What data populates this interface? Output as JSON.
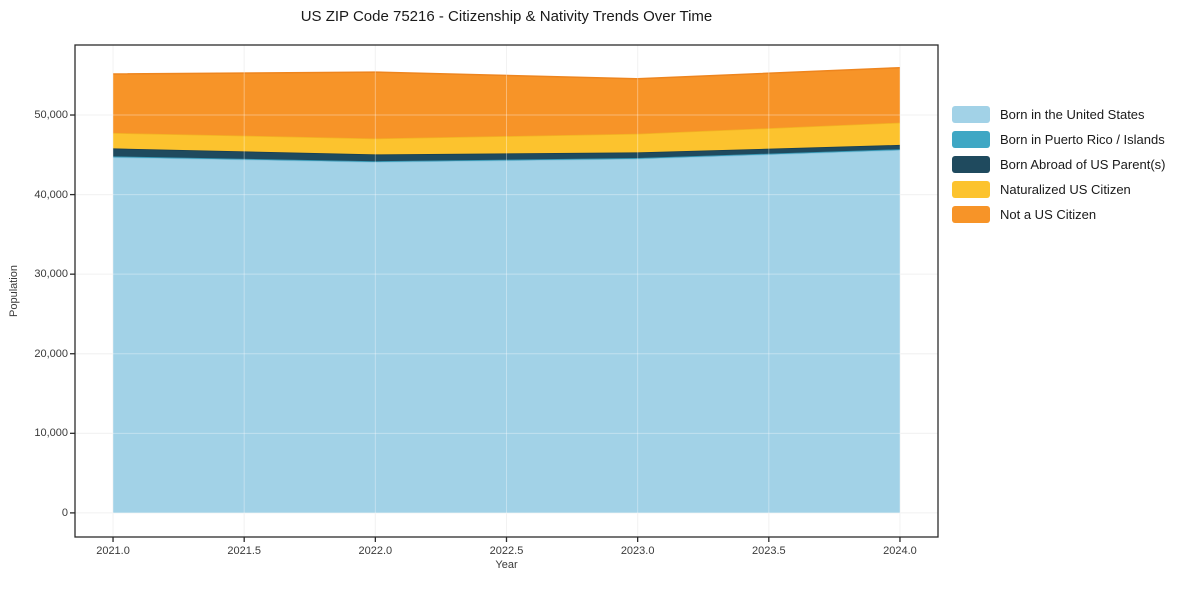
{
  "title": "US ZIP Code 75216 - Citizenship & Nativity Trends Over Time",
  "chart_data": {
    "type": "area",
    "stacked": true,
    "title": "US ZIP Code 75216 - Citizenship & Nativity Trends Over Time",
    "xlabel": "Year",
    "ylabel": "Population",
    "x": [
      2021,
      2022,
      2023,
      2024
    ],
    "series": [
      {
        "name": "Born in the United States",
        "color": "#a2d2e7",
        "line_color": "#8cc4dd",
        "values": [
          44700,
          44100,
          44500,
          45600
        ]
      },
      {
        "name": "Born in Puerto Rico / Islands",
        "color": "#3fa7c4",
        "line_color": "#3697b3",
        "values": [
          100,
          100,
          100,
          100
        ]
      },
      {
        "name": "Born Abroad of US Parent(s)",
        "color": "#1f4a5e",
        "line_color": "#193e50",
        "values": [
          1000,
          850,
          700,
          550
        ]
      },
      {
        "name": "Naturalized US Citizen",
        "color": "#fcc32e",
        "line_color": "#f2b322",
        "values": [
          1950,
          2000,
          2350,
          2800
        ]
      },
      {
        "name": "Not a US Citizen",
        "color": "#f79428",
        "line_color": "#ee851e",
        "values": [
          7400,
          8350,
          6900,
          6900
        ]
      }
    ],
    "totals": [
      55150,
      55400,
      54550,
      55950
    ],
    "xticks": {
      "values": [
        2021.0,
        2021.5,
        2022.0,
        2022.5,
        2023.0,
        2023.5,
        2024.0
      ],
      "labels": [
        "2021.0",
        "2021.5",
        "2022.0",
        "2022.5",
        "2023.0",
        "2023.5",
        "2024.0"
      ]
    },
    "yticks": {
      "values": [
        0,
        10000,
        20000,
        30000,
        40000,
        50000
      ],
      "labels": [
        "0",
        "10,000",
        "20,000",
        "30,000",
        "40,000",
        "50,000"
      ]
    },
    "xlim": [
      2020.855,
      2024.145
    ],
    "ylim": [
      -3030,
      58800
    ],
    "grid": true,
    "legend_position": "right",
    "colors": {
      "grid": "#ececec",
      "axis_border": "#2b2b2b",
      "tick_text": "#3a3a3a",
      "title_text": "#1a1a1a"
    }
  }
}
